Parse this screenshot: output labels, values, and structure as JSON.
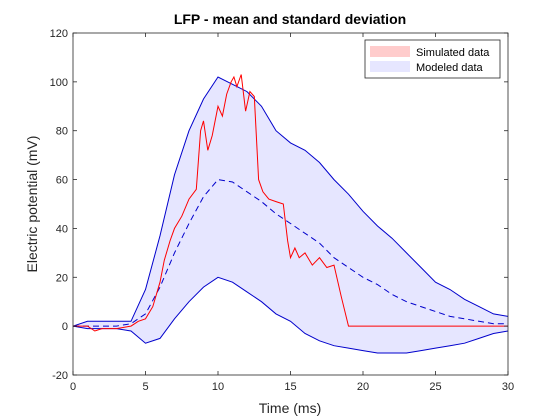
{
  "chart_data": {
    "type": "line",
    "title": "LFP - mean and standard deviation",
    "xlabel": "Time (ms)",
    "ylabel": "Electric potential (mV)",
    "xlim": [
      0,
      30
    ],
    "ylim": [
      -20,
      120
    ],
    "xticks": [
      "0",
      "5",
      "10",
      "15",
      "20",
      "25",
      "30"
    ],
    "yticks": [
      "-20",
      "0",
      "20",
      "40",
      "60",
      "80",
      "100",
      "120"
    ],
    "grid": false,
    "legend_position": "top-right",
    "legend": [
      {
        "label": "Simulated data",
        "color": "#ffcccc",
        "edge": "#ff0000"
      },
      {
        "label": "Modeled data",
        "color": "#e6e6ff",
        "edge": "#0000ff"
      }
    ],
    "series": [
      {
        "name": "Simulated data",
        "style": "line",
        "color": "#ff0000",
        "x": [
          0,
          1,
          1.5,
          2,
          3,
          4,
          4.5,
          5,
          5.5,
          6,
          6.3,
          6.7,
          7,
          7.5,
          8,
          8.5,
          8.8,
          9,
          9.3,
          9.6,
          10,
          10.3,
          10.6,
          10.9,
          11.1,
          11.3,
          11.6,
          11.9,
          12.2,
          12.5,
          12.8,
          13.1,
          13.5,
          14,
          14.5,
          14.8,
          15,
          15.3,
          15.6,
          16,
          16.5,
          17,
          17.5,
          18,
          18.5,
          19,
          20,
          25,
          30
        ],
        "y": [
          0,
          0,
          -2,
          -1,
          -1,
          0,
          2,
          3,
          8,
          18,
          27,
          35,
          40,
          45,
          52,
          56,
          80,
          84,
          72,
          78,
          90,
          86,
          95,
          100,
          102,
          98,
          103,
          88,
          96,
          94,
          60,
          55,
          52,
          51,
          50,
          35,
          28,
          32,
          28,
          30,
          25,
          28,
          24,
          25,
          12,
          0,
          0,
          0,
          0
        ]
      },
      {
        "name": "",
        "style": "dashed",
        "color": "#0000cc",
        "x": [
          0,
          1,
          2,
          3,
          4,
          5,
          6,
          7,
          8,
          9,
          10,
          11,
          12,
          13,
          14,
          15,
          16,
          17,
          18,
          19,
          20,
          21,
          22,
          23,
          24,
          25,
          26,
          27,
          28,
          29,
          30
        ],
        "y": [
          0,
          0,
          0,
          0,
          1,
          5,
          16,
          30,
          42,
          53,
          60,
          59,
          55,
          51,
          46,
          42,
          38,
          34,
          28,
          24,
          20,
          17,
          13,
          10,
          8,
          6,
          4,
          3,
          2,
          1,
          1
        ]
      },
      {
        "name": "",
        "style": "line",
        "color": "#0000cc",
        "x": [
          0,
          1,
          2,
          3,
          4,
          5,
          6,
          7,
          8,
          9,
          10,
          11,
          12,
          13,
          14,
          15,
          16,
          17,
          18,
          19,
          20,
          21,
          22,
          23,
          24,
          25,
          26,
          27,
          28,
          29,
          30
        ],
        "y": [
          0,
          2,
          2,
          2,
          2,
          15,
          37,
          62,
          80,
          93,
          102,
          99,
          96,
          90,
          80,
          75,
          72,
          67,
          60,
          54,
          47,
          41,
          36,
          30,
          24,
          18,
          15,
          11,
          8,
          5,
          4
        ]
      },
      {
        "name": "",
        "style": "line",
        "color": "#0000cc",
        "x": [
          0,
          1,
          2,
          3,
          4,
          5,
          6,
          7,
          8,
          9,
          10,
          11,
          12,
          13,
          14,
          15,
          16,
          17,
          18,
          19,
          20,
          21,
          22,
          23,
          24,
          25,
          26,
          27,
          28,
          29,
          30
        ],
        "y": [
          0,
          -1,
          -1,
          -1,
          -2,
          -7,
          -5,
          3,
          10,
          16,
          20,
          18,
          14,
          10,
          5,
          2,
          -3,
          -6,
          -8,
          -9,
          -10,
          -11,
          -11,
          -11,
          -10,
          -9,
          -8,
          -7,
          -5,
          -3,
          -2
        ]
      }
    ]
  }
}
